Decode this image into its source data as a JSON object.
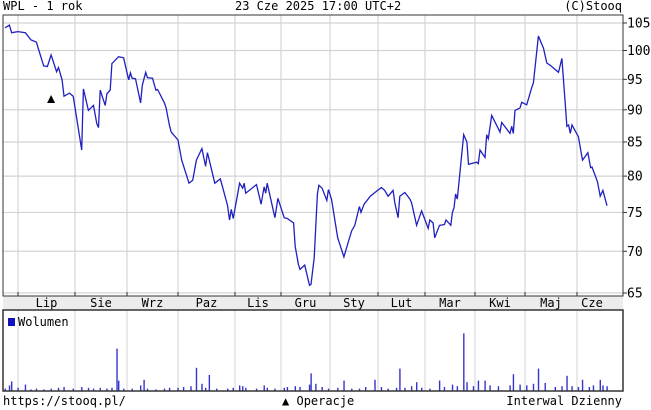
{
  "header": {
    "title": "WPL - 1 rok",
    "timestamp": "23 Cze 2025 17:00 UTC+2",
    "copyright": "(C)Stooq"
  },
  "footer": {
    "url": "https://stooq.pl/",
    "operations_label": "Operacje",
    "interval_label": "Interwal Dzienny"
  },
  "colors": {
    "line": "#2020c0",
    "volume": "#3434d0",
    "grid": "#d4d4d4",
    "axis_band": "#ececec",
    "frame": "#333333"
  },
  "chart_data": {
    "type": "line",
    "title": "WPL - 1 rok",
    "y_scale": "log",
    "ylim": [
      65,
      105
    ],
    "y_ticks": [
      "65",
      "70",
      "75",
      "80",
      "85",
      "90",
      "95",
      "100",
      "105"
    ],
    "x_range": [
      "2024-06-24",
      "2025-06-23"
    ],
    "x_ticks": [
      "Lip",
      "Sie",
      "Wrz",
      "Paz",
      "Lis",
      "Gru",
      "Sty",
      "Lut",
      "Mar",
      "Kwi",
      "Maj",
      "Cze"
    ],
    "grid": true,
    "legend": {
      "label": "Wolumen",
      "placement": "top-left of volume panel"
    },
    "operations": [
      {
        "date": "2024-07-19",
        "marker": "triangle-up"
      }
    ],
    "price": [
      [
        "2024-06-25",
        104.1
      ],
      [
        "2024-06-27",
        104.6
      ],
      [
        "2024-06-28",
        103.2
      ],
      [
        "2024-07-01",
        103.4
      ],
      [
        "2024-07-05",
        103.2
      ],
      [
        "2024-07-08",
        101.9
      ],
      [
        "2024-07-11",
        101.5
      ],
      [
        "2024-07-12",
        100.4
      ],
      [
        "2024-07-15",
        97.3
      ],
      [
        "2024-07-17",
        97.2
      ],
      [
        "2024-07-19",
        99.2
      ],
      [
        "2024-07-22",
        96.3
      ],
      [
        "2024-07-23",
        97.0
      ],
      [
        "2024-07-25",
        94.9
      ],
      [
        "2024-07-26",
        92.2
      ],
      [
        "2024-07-29",
        92.7
      ],
      [
        "2024-07-31",
        92.2
      ],
      [
        "2024-08-05",
        83.8
      ],
      [
        "2024-08-06",
        93.4
      ],
      [
        "2024-08-09",
        89.9
      ],
      [
        "2024-08-12",
        90.7
      ],
      [
        "2024-08-14",
        87.8
      ],
      [
        "2024-08-15",
        87.2
      ],
      [
        "2024-08-16",
        93.2
      ],
      [
        "2024-08-19",
        90.7
      ],
      [
        "2024-08-20",
        92.6
      ],
      [
        "2024-08-22",
        93.2
      ],
      [
        "2024-08-23",
        97.7
      ],
      [
        "2024-08-27",
        98.9
      ],
      [
        "2024-08-30",
        98.7
      ],
      [
        "2024-09-02",
        94.9
      ],
      [
        "2024-09-03",
        96.1
      ],
      [
        "2024-09-04",
        95.2
      ],
      [
        "2024-09-06",
        95.1
      ],
      [
        "2024-09-09",
        91.1
      ],
      [
        "2024-09-10",
        94.0
      ],
      [
        "2024-09-12",
        96.2
      ],
      [
        "2024-09-13",
        95.3
      ],
      [
        "2024-09-16",
        95.2
      ],
      [
        "2024-09-18",
        93.2
      ],
      [
        "2024-09-19",
        93.3
      ],
      [
        "2024-09-23",
        91.1
      ],
      [
        "2024-09-24",
        90.3
      ],
      [
        "2024-09-26",
        87.5
      ],
      [
        "2024-09-27",
        86.5
      ],
      [
        "2024-10-01",
        85.3
      ],
      [
        "2024-10-03",
        82.3
      ],
      [
        "2024-10-07",
        79.0
      ],
      [
        "2024-10-09",
        79.4
      ],
      [
        "2024-10-11",
        82.3
      ],
      [
        "2024-10-14",
        84.0
      ],
      [
        "2024-10-16",
        81.4
      ],
      [
        "2024-10-17",
        83.4
      ],
      [
        "2024-10-18",
        82.3
      ],
      [
        "2024-10-21",
        79.0
      ],
      [
        "2024-10-22",
        79.2
      ],
      [
        "2024-10-24",
        79.6
      ],
      [
        "2024-10-25",
        78.7
      ],
      [
        "2024-10-28",
        75.9
      ],
      [
        "2024-10-29",
        74.0
      ],
      [
        "2024-10-30",
        75.4
      ],
      [
        "2024-10-31",
        74.2
      ],
      [
        "2024-11-04",
        79.0
      ],
      [
        "2024-11-06",
        78.3
      ],
      [
        "2024-11-07",
        79.0
      ],
      [
        "2024-11-08",
        77.6
      ],
      [
        "2024-11-15",
        78.8
      ],
      [
        "2024-11-18",
        76.1
      ],
      [
        "2024-11-20",
        78.5
      ],
      [
        "2024-11-21",
        77.6
      ],
      [
        "2024-11-22",
        79.0
      ],
      [
        "2024-11-27",
        74.3
      ],
      [
        "2024-11-29",
        76.9
      ],
      [
        "2024-12-03",
        74.3
      ],
      [
        "2024-12-05",
        74.2
      ],
      [
        "2024-12-09",
        73.6
      ],
      [
        "2024-12-10",
        70.6
      ],
      [
        "2024-12-12",
        68.4
      ],
      [
        "2024-12-13",
        67.8
      ],
      [
        "2024-12-16",
        68.3
      ],
      [
        "2024-12-19",
        65.9
      ],
      [
        "2024-12-20",
        66.0
      ],
      [
        "2024-12-22",
        69.2
      ],
      [
        "2024-12-24",
        77.5
      ],
      [
        "2024-12-25",
        78.7
      ],
      [
        "2024-12-27",
        78.3
      ],
      [
        "2024-12-30",
        76.6
      ],
      [
        "2024-12-31",
        78.1
      ],
      [
        "2025-01-02",
        76.8
      ],
      [
        "2025-01-06",
        71.7
      ],
      [
        "2025-01-10",
        69.3
      ],
      [
        "2025-01-13",
        71.3
      ],
      [
        "2025-01-15",
        72.6
      ],
      [
        "2025-01-17",
        73.3
      ],
      [
        "2025-01-20",
        75.8
      ],
      [
        "2025-01-21",
        75.0
      ],
      [
        "2025-01-23",
        76.1
      ],
      [
        "2025-01-27",
        77.2
      ],
      [
        "2025-01-30",
        77.7
      ],
      [
        "2025-02-03",
        78.4
      ],
      [
        "2025-02-05",
        78.0
      ],
      [
        "2025-02-07",
        77.2
      ],
      [
        "2025-02-10",
        78.0
      ],
      [
        "2025-02-11",
        76.3
      ],
      [
        "2025-02-13",
        74.3
      ],
      [
        "2025-02-14",
        77.2
      ],
      [
        "2025-02-17",
        77.7
      ],
      [
        "2025-02-20",
        76.8
      ],
      [
        "2025-02-21",
        76.3
      ],
      [
        "2025-02-24",
        73.3
      ],
      [
        "2025-02-27",
        75.2
      ],
      [
        "2025-03-03",
        72.9
      ],
      [
        "2025-03-04",
        74.0
      ],
      [
        "2025-03-06",
        73.6
      ],
      [
        "2025-03-07",
        71.7
      ],
      [
        "2025-03-10",
        73.3
      ],
      [
        "2025-03-13",
        73.4
      ],
      [
        "2025-03-14",
        74.0
      ],
      [
        "2025-03-17",
        73.3
      ],
      [
        "2025-03-18",
        75.0
      ],
      [
        "2025-03-19",
        75.6
      ],
      [
        "2025-03-20",
        77.5
      ],
      [
        "2025-03-21",
        76.8
      ],
      [
        "2025-03-25",
        86.1
      ],
      [
        "2025-03-27",
        85.0
      ],
      [
        "2025-03-28",
        81.7
      ],
      [
        "2025-04-02",
        82.0
      ],
      [
        "2025-04-03",
        81.8
      ],
      [
        "2025-04-04",
        83.8
      ],
      [
        "2025-04-07",
        82.7
      ],
      [
        "2025-04-08",
        86.1
      ],
      [
        "2025-04-09",
        85.5
      ],
      [
        "2025-04-11",
        89.1
      ],
      [
        "2025-04-16",
        86.5
      ],
      [
        "2025-04-17",
        88.0
      ],
      [
        "2025-04-22",
        86.3
      ],
      [
        "2025-04-23",
        87.4
      ],
      [
        "2025-04-24",
        86.3
      ],
      [
        "2025-04-25",
        89.9
      ],
      [
        "2025-04-28",
        90.3
      ],
      [
        "2025-04-29",
        91.2
      ],
      [
        "2025-05-02",
        90.8
      ],
      [
        "2025-05-05",
        93.6
      ],
      [
        "2025-05-06",
        94.4
      ],
      [
        "2025-05-09",
        102.6
      ],
      [
        "2025-05-12",
        100.4
      ],
      [
        "2025-05-14",
        97.8
      ],
      [
        "2025-05-16",
        97.4
      ],
      [
        "2025-05-21",
        96.2
      ],
      [
        "2025-05-23",
        98.6
      ],
      [
        "2025-05-26",
        87.4
      ],
      [
        "2025-05-27",
        87.6
      ],
      [
        "2025-05-28",
        86.3
      ],
      [
        "2025-05-29",
        87.6
      ],
      [
        "2025-06-02",
        85.8
      ],
      [
        "2025-06-05",
        82.3
      ],
      [
        "2025-06-09",
        83.4
      ],
      [
        "2025-06-11",
        81.2
      ],
      [
        "2025-06-12",
        81.3
      ],
      [
        "2025-06-16",
        79.2
      ],
      [
        "2025-06-18",
        77.2
      ],
      [
        "2025-06-20",
        78.0
      ],
      [
        "2025-06-23",
        75.9
      ]
    ],
    "volume_relative": [
      [
        "2024-06-25",
        0.03
      ],
      [
        "2024-06-27",
        0.07
      ],
      [
        "2024-06-28",
        0.12
      ],
      [
        "2024-07-01",
        0.04
      ],
      [
        "2024-07-05",
        0.08
      ],
      [
        "2024-07-08",
        0.02
      ],
      [
        "2024-07-11",
        0.03
      ],
      [
        "2024-07-15",
        0.02
      ],
      [
        "2024-07-19",
        0.03
      ],
      [
        "2024-07-23",
        0.04
      ],
      [
        "2024-07-26",
        0.05
      ],
      [
        "2024-07-31",
        0.03
      ],
      [
        "2024-08-05",
        0.05
      ],
      [
        "2024-08-09",
        0.04
      ],
      [
        "2024-08-12",
        0.03
      ],
      [
        "2024-08-16",
        0.04
      ],
      [
        "2024-08-20",
        0.03
      ],
      [
        "2024-08-23",
        0.04
      ],
      [
        "2024-08-26",
        0.53
      ],
      [
        "2024-08-27",
        0.13
      ],
      [
        "2024-08-30",
        0.03
      ],
      [
        "2024-09-04",
        0.03
      ],
      [
        "2024-09-09",
        0.07
      ],
      [
        "2024-09-11",
        0.14
      ],
      [
        "2024-09-13",
        0.03
      ],
      [
        "2024-09-18",
        0.02
      ],
      [
        "2024-09-23",
        0.03
      ],
      [
        "2024-09-26",
        0.04
      ],
      [
        "2024-10-01",
        0.04
      ],
      [
        "2024-10-04",
        0.05
      ],
      [
        "2024-10-08",
        0.06
      ],
      [
        "2024-10-11",
        0.29
      ],
      [
        "2024-10-14",
        0.09
      ],
      [
        "2024-10-16",
        0.04
      ],
      [
        "2024-10-18",
        0.2
      ],
      [
        "2024-10-22",
        0.03
      ],
      [
        "2024-10-28",
        0.03
      ],
      [
        "2024-10-31",
        0.04
      ],
      [
        "2024-11-04",
        0.07
      ],
      [
        "2024-11-06",
        0.06
      ],
      [
        "2024-11-08",
        0.04
      ],
      [
        "2024-11-15",
        0.03
      ],
      [
        "2024-11-20",
        0.07
      ],
      [
        "2024-11-22",
        0.04
      ],
      [
        "2024-11-27",
        0.03
      ],
      [
        "2024-12-03",
        0.04
      ],
      [
        "2024-12-05",
        0.05
      ],
      [
        "2024-12-10",
        0.06
      ],
      [
        "2024-12-13",
        0.05
      ],
      [
        "2024-12-19",
        0.08
      ],
      [
        "2024-12-20",
        0.22
      ],
      [
        "2024-12-23",
        0.09
      ],
      [
        "2024-12-27",
        0.05
      ],
      [
        "2024-12-31",
        0.03
      ],
      [
        "2025-01-06",
        0.04
      ],
      [
        "2025-01-10",
        0.13
      ],
      [
        "2025-01-15",
        0.03
      ],
      [
        "2025-01-20",
        0.03
      ],
      [
        "2025-01-24",
        0.05
      ],
      [
        "2025-01-30",
        0.14
      ],
      [
        "2025-02-03",
        0.05
      ],
      [
        "2025-02-07",
        0.03
      ],
      [
        "2025-02-12",
        0.04
      ],
      [
        "2025-02-14",
        0.28
      ],
      [
        "2025-02-17",
        0.04
      ],
      [
        "2025-02-21",
        0.06
      ],
      [
        "2025-02-24",
        0.11
      ],
      [
        "2025-02-27",
        0.04
      ],
      [
        "2025-03-04",
        0.03
      ],
      [
        "2025-03-10",
        0.13
      ],
      [
        "2025-03-13",
        0.05
      ],
      [
        "2025-03-18",
        0.08
      ],
      [
        "2025-03-21",
        0.06
      ],
      [
        "2025-03-25",
        0.72
      ],
      [
        "2025-03-27",
        0.11
      ],
      [
        "2025-03-31",
        0.06
      ],
      [
        "2025-04-03",
        0.13
      ],
      [
        "2025-04-07",
        0.13
      ],
      [
        "2025-04-10",
        0.07
      ],
      [
        "2025-04-15",
        0.06
      ],
      [
        "2025-04-22",
        0.07
      ],
      [
        "2025-04-24",
        0.21
      ],
      [
        "2025-04-28",
        0.08
      ],
      [
        "2025-05-02",
        0.07
      ],
      [
        "2025-05-06",
        0.09
      ],
      [
        "2025-05-09",
        0.28
      ],
      [
        "2025-05-13",
        0.1
      ],
      [
        "2025-05-19",
        0.05
      ],
      [
        "2025-05-23",
        0.06
      ],
      [
        "2025-05-26",
        0.19
      ],
      [
        "2025-05-29",
        0.06
      ],
      [
        "2025-06-02",
        0.05
      ],
      [
        "2025-06-05",
        0.14
      ],
      [
        "2025-06-10",
        0.05
      ],
      [
        "2025-06-13",
        0.07
      ],
      [
        "2025-06-18",
        0.14
      ],
      [
        "2025-06-20",
        0.07
      ],
      [
        "2025-06-23",
        0.06
      ]
    ]
  }
}
